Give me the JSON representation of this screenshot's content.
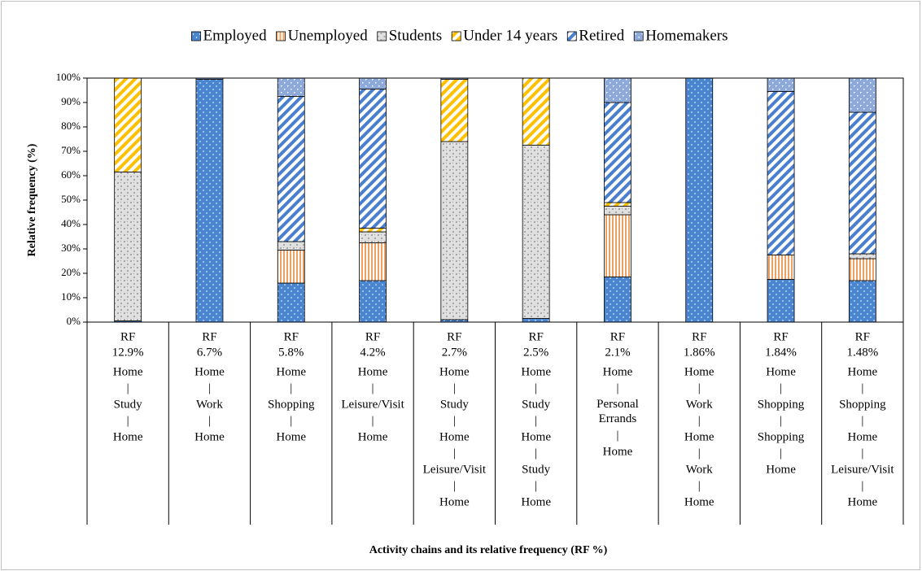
{
  "chart_data": {
    "type": "stacked_bar",
    "xlabel": "Activity chains and its relative frequency (RF %)",
    "ylabel": "Relative frequency (%)",
    "categories": [
      [
        "RF",
        "12.9%",
        "Home",
        "|",
        "Study",
        "|",
        "Home"
      ],
      [
        "RF",
        "6.7%",
        "Home",
        "|",
        "Work",
        "|",
        "Home"
      ],
      [
        "RF",
        "5.8%",
        "Home",
        "|",
        "Shopping",
        "|",
        "Home"
      ],
      [
        "RF",
        "4.2%",
        "Home",
        "|",
        "Leisure/Visit",
        "|",
        "Home"
      ],
      [
        "RF",
        "2.7%",
        "Home",
        "|",
        "Study",
        "|",
        "Home",
        "|",
        "Leisure/Visit",
        "|",
        "Home"
      ],
      [
        "RF",
        "2.5%",
        "Home",
        "|",
        "Study",
        "|",
        "Home",
        "|",
        "Study",
        "|",
        "Home"
      ],
      [
        "RF",
        "2.1%",
        "Home",
        "|",
        "Personal Errands",
        "|",
        "Home"
      ],
      [
        "RF",
        "1.86%",
        "Home",
        "|",
        "Work",
        "|",
        "Home",
        "|",
        "Work",
        "|",
        "Home"
      ],
      [
        "RF",
        "1.84%",
        "Home",
        "|",
        "Shopping",
        "|",
        "Shopping",
        "|",
        "Home"
      ],
      [
        "RF",
        "1.48%",
        "Home",
        "|",
        "Shopping",
        "|",
        "Home",
        "|",
        "Leisure/Visit",
        "|",
        "Home"
      ]
    ],
    "series": [
      {
        "name": "Employed",
        "color": "#4a86d0",
        "values": [
          0.5,
          99.5,
          16,
          17,
          1,
          1.5,
          18.5,
          100,
          17.5,
          17
        ]
      },
      {
        "name": "Unemployed",
        "color": "#f0a060",
        "values": [
          0,
          0,
          13.5,
          15.5,
          0,
          0,
          25.5,
          0,
          10,
          9
        ]
      },
      {
        "name": "Students",
        "color": "#a6a6a6",
        "values": [
          61,
          0,
          3.5,
          4.5,
          73,
          71,
          3.5,
          0,
          0,
          2
        ]
      },
      {
        "name": "Under 14 years",
        "color": "#ffc000",
        "values": [
          38.5,
          0,
          0,
          1.5,
          25.5,
          27.5,
          1.5,
          0,
          0,
          0
        ]
      },
      {
        "name": "Retired",
        "color": "#4a7fd0",
        "values": [
          0,
          0,
          59.5,
          57,
          0,
          0,
          41,
          0,
          67,
          58
        ]
      },
      {
        "name": "Homemakers",
        "color": "#8eaadb",
        "values": [
          0,
          0.5,
          7.5,
          4.5,
          0.5,
          0,
          10,
          0,
          5.5,
          14
        ]
      }
    ],
    "ylim": [
      0,
      100
    ],
    "yticks": [
      {
        "value": 0,
        "label": "0%"
      },
      {
        "value": 10,
        "label": "10%"
      },
      {
        "value": 20,
        "label": "20%"
      },
      {
        "value": 30,
        "label": "30%"
      },
      {
        "value": 40,
        "label": "40%"
      },
      {
        "value": 50,
        "label": "50%"
      },
      {
        "value": 60,
        "label": "60%"
      },
      {
        "value": 70,
        "label": "70%"
      },
      {
        "value": 80,
        "label": "80%"
      },
      {
        "value": 90,
        "label": "90%"
      },
      {
        "value": 100,
        "label": "100%"
      }
    ],
    "legend": "top"
  }
}
